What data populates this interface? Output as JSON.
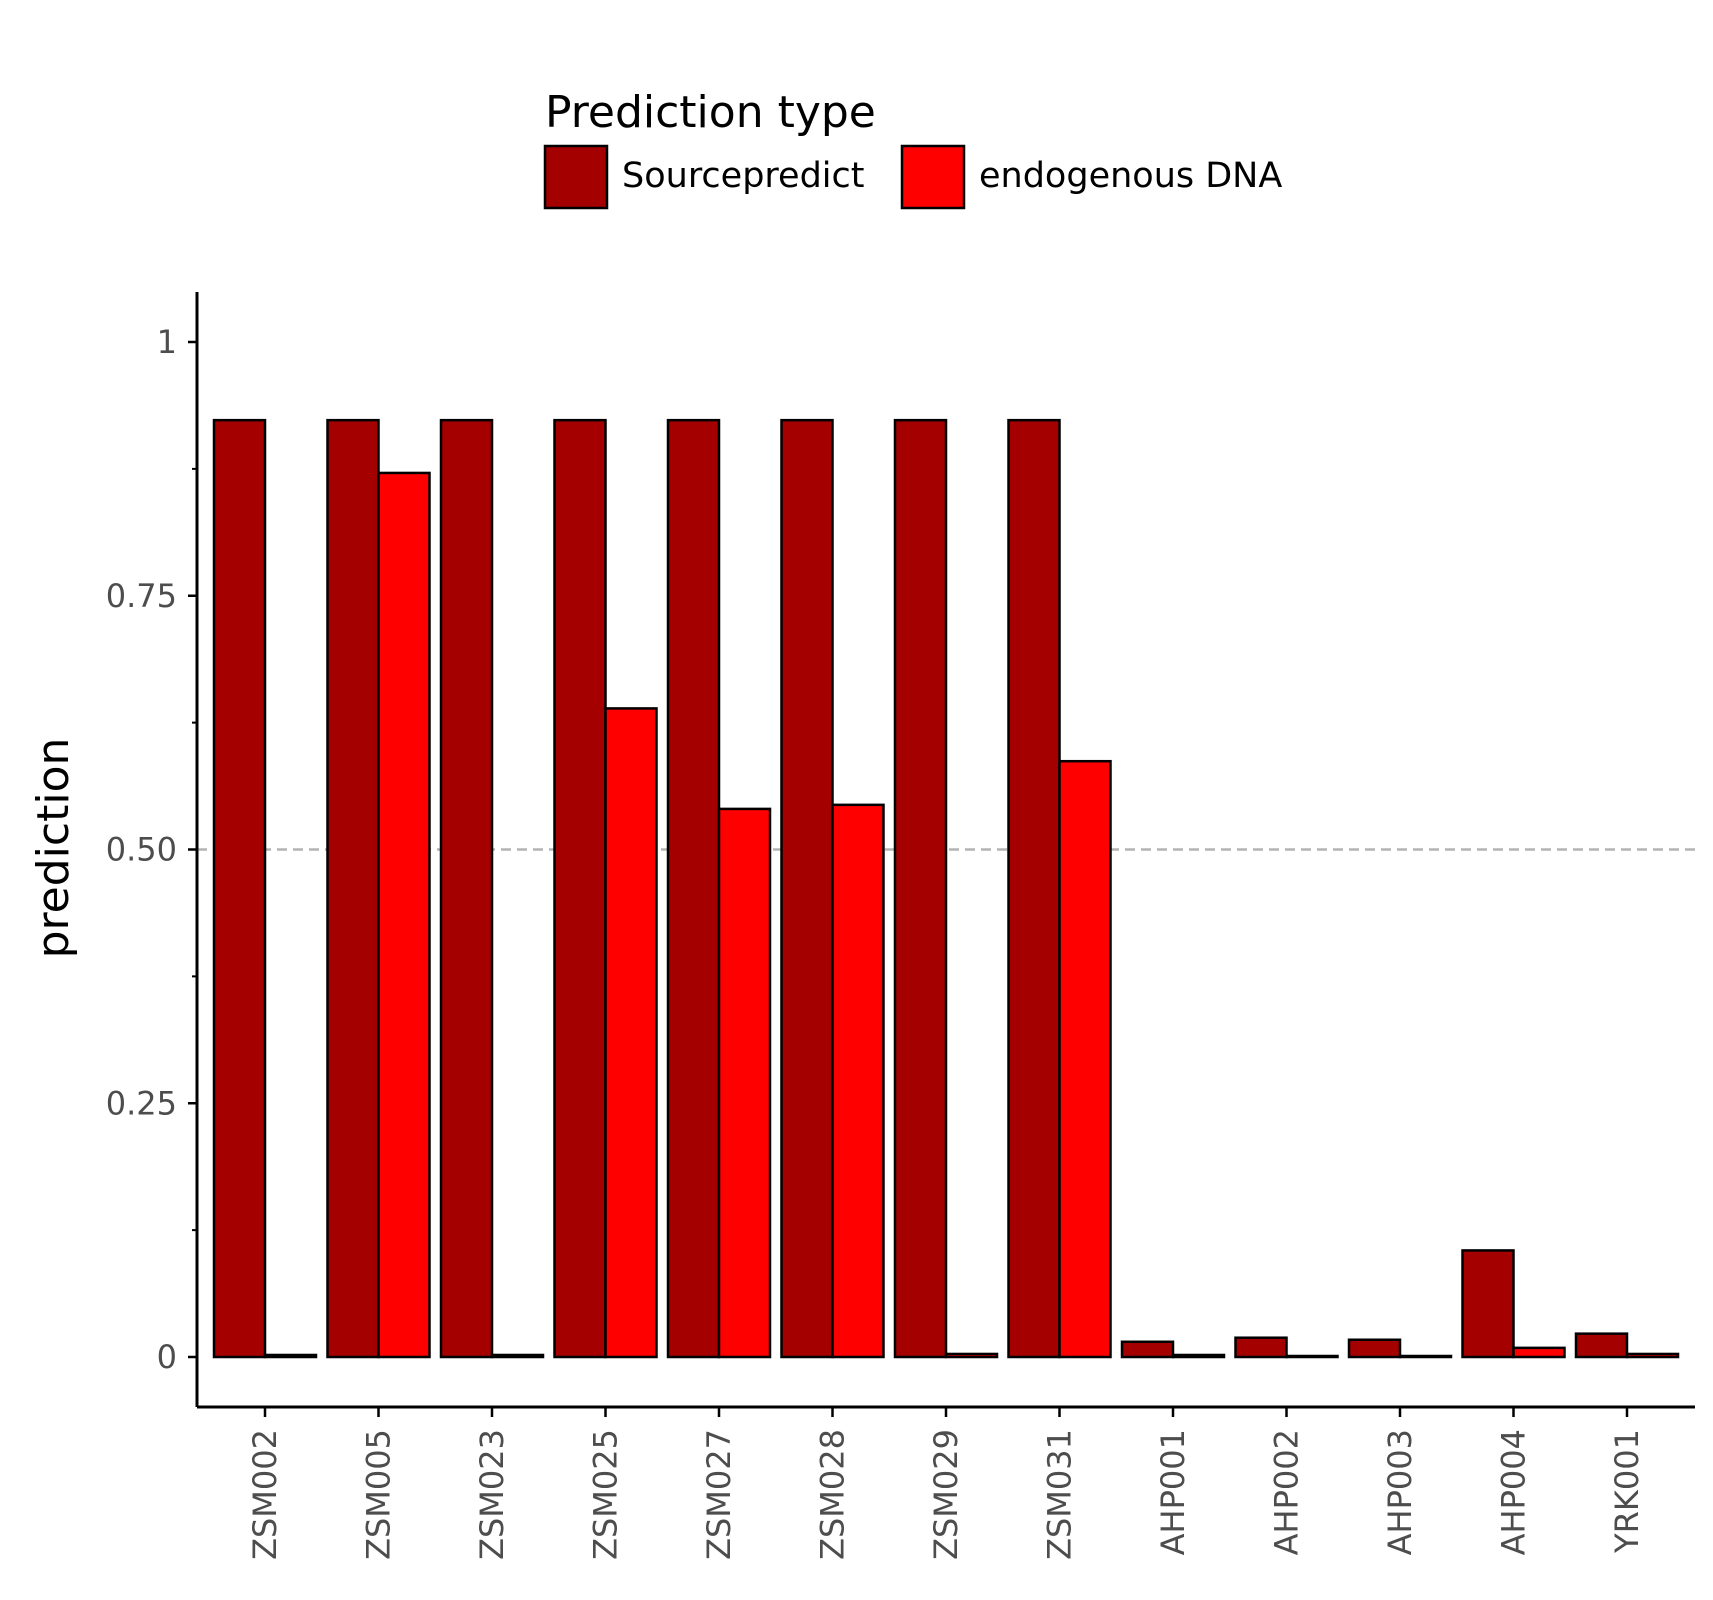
{
  "chart_data": {
    "type": "bar",
    "xlabel": "",
    "ylabel": "prediction",
    "ylim": [
      -0.05,
      1.05
    ],
    "yticks": [
      {
        "value": 0,
        "label": "0"
      },
      {
        "value": 0.25,
        "label": "0.25"
      },
      {
        "value": 0.5,
        "label": "0.50"
      },
      {
        "value": 0.75,
        "label": "0.75"
      },
      {
        "value": 1,
        "label": "1"
      }
    ],
    "reference_line": {
      "value": 0.5,
      "style": "dashed",
      "color": "#b3b3b3"
    },
    "categories": [
      "ZSM002",
      "ZSM005",
      "ZSM023",
      "ZSM025",
      "ZSM027",
      "ZSM028",
      "ZSM029",
      "ZSM031",
      "AHP001",
      "AHP002",
      "AHP003",
      "AHP004",
      "YRK001"
    ],
    "legend": {
      "title": "Prediction type",
      "placement": "top"
    },
    "series": [
      {
        "name": "Sourcepredict",
        "color": "#a50000",
        "values": [
          0.923,
          0.923,
          0.923,
          0.923,
          0.923,
          0.923,
          0.923,
          0.923,
          0.015,
          0.019,
          0.017,
          0.105,
          0.023
        ]
      },
      {
        "name": "endogenous DNA",
        "color": "#ff0000",
        "values": [
          0.002,
          0.871,
          0.002,
          0.639,
          0.54,
          0.544,
          0.003,
          0.587,
          0.002,
          0.001,
          0.001,
          0.009,
          0.003
        ]
      }
    ]
  }
}
